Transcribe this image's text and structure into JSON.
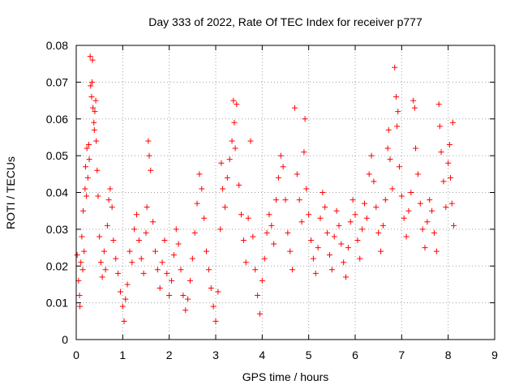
{
  "chart_data": {
    "type": "scatter",
    "title": "Day 333 of 2022, Rate Of TEC Index for receiver p777",
    "xlabel": "GPS time / hours",
    "ylabel": "ROTI / TECUs",
    "xlim": [
      0,
      9
    ],
    "ylim": [
      0,
      0.08
    ],
    "xticks": [
      "0",
      "1",
      "2",
      "3",
      "4",
      "5",
      "6",
      "7",
      "8",
      "9"
    ],
    "yticks": [
      "0",
      "0.01",
      "0.02",
      "0.03",
      "0.04",
      "0.05",
      "0.06",
      "0.07",
      "0.08"
    ],
    "grid": true,
    "marker": "+",
    "color": "#ff0000",
    "series": [
      {
        "name": "ROTI",
        "points": [
          [
            0.02,
            0.023
          ],
          [
            0.05,
            0.016
          ],
          [
            0.07,
            0.012
          ],
          [
            0.08,
            0.009
          ],
          [
            0.1,
            0.021
          ],
          [
            0.12,
            0.028
          ],
          [
            0.14,
            0.019
          ],
          [
            0.15,
            0.035
          ],
          [
            0.17,
            0.024
          ],
          [
            0.19,
            0.041
          ],
          [
            0.2,
            0.047
          ],
          [
            0.22,
            0.039
          ],
          [
            0.23,
            0.052
          ],
          [
            0.25,
            0.044
          ],
          [
            0.27,
            0.053
          ],
          [
            0.28,
            0.049
          ],
          [
            0.3,
            0.077
          ],
          [
            0.31,
            0.069
          ],
          [
            0.33,
            0.066
          ],
          [
            0.34,
            0.07
          ],
          [
            0.35,
            0.076
          ],
          [
            0.36,
            0.063
          ],
          [
            0.38,
            0.059
          ],
          [
            0.39,
            0.057
          ],
          [
            0.4,
            0.062
          ],
          [
            0.42,
            0.065
          ],
          [
            0.43,
            0.054
          ],
          [
            0.45,
            0.046
          ],
          [
            0.47,
            0.039
          ],
          [
            0.5,
            0.028
          ],
          [
            0.53,
            0.021
          ],
          [
            0.56,
            0.017
          ],
          [
            0.6,
            0.024
          ],
          [
            0.63,
            0.019
          ],
          [
            0.67,
            0.031
          ],
          [
            0.7,
            0.038
          ],
          [
            0.73,
            0.041
          ],
          [
            0.77,
            0.036
          ],
          [
            0.8,
            0.027
          ],
          [
            0.85,
            0.022
          ],
          [
            0.9,
            0.018
          ],
          [
            0.95,
            0.013
          ],
          [
            1.0,
            0.009
          ],
          [
            1.03,
            0.005
          ],
          [
            1.06,
            0.011
          ],
          [
            1.1,
            0.015
          ],
          [
            1.15,
            0.024
          ],
          [
            1.2,
            0.021
          ],
          [
            1.25,
            0.03
          ],
          [
            1.3,
            0.034
          ],
          [
            1.35,
            0.027
          ],
          [
            1.4,
            0.022
          ],
          [
            1.45,
            0.018
          ],
          [
            1.5,
            0.029
          ],
          [
            1.52,
            0.036
          ],
          [
            1.55,
            0.054
          ],
          [
            1.57,
            0.05
          ],
          [
            1.6,
            0.046
          ],
          [
            1.65,
            0.032
          ],
          [
            1.7,
            0.024
          ],
          [
            1.75,
            0.019
          ],
          [
            1.8,
            0.014
          ],
          [
            1.85,
            0.021
          ],
          [
            1.9,
            0.027
          ],
          [
            1.95,
            0.018
          ],
          [
            2.0,
            0.012
          ],
          [
            2.05,
            0.016
          ],
          [
            2.1,
            0.023
          ],
          [
            2.15,
            0.03
          ],
          [
            2.2,
            0.026
          ],
          [
            2.25,
            0.019
          ],
          [
            2.3,
            0.012
          ],
          [
            2.35,
            0.008
          ],
          [
            2.4,
            0.011
          ],
          [
            2.45,
            0.016
          ],
          [
            2.5,
            0.022
          ],
          [
            2.55,
            0.029
          ],
          [
            2.6,
            0.037
          ],
          [
            2.65,
            0.045
          ],
          [
            2.7,
            0.041
          ],
          [
            2.75,
            0.033
          ],
          [
            2.8,
            0.024
          ],
          [
            2.85,
            0.019
          ],
          [
            2.9,
            0.014
          ],
          [
            2.95,
            0.009
          ],
          [
            3.0,
            0.005
          ],
          [
            3.05,
            0.013
          ],
          [
            3.1,
            0.03
          ],
          [
            3.12,
            0.048
          ],
          [
            3.15,
            0.041
          ],
          [
            3.2,
            0.036
          ],
          [
            3.25,
            0.044
          ],
          [
            3.3,
            0.049
          ],
          [
            3.35,
            0.054
          ],
          [
            3.38,
            0.065
          ],
          [
            3.4,
            0.059
          ],
          [
            3.42,
            0.052
          ],
          [
            3.45,
            0.064
          ],
          [
            3.5,
            0.042
          ],
          [
            3.55,
            0.034
          ],
          [
            3.6,
            0.027
          ],
          [
            3.65,
            0.021
          ],
          [
            3.7,
            0.033
          ],
          [
            3.75,
            0.054
          ],
          [
            3.8,
            0.028
          ],
          [
            3.85,
            0.019
          ],
          [
            3.9,
            0.012
          ],
          [
            3.95,
            0.007
          ],
          [
            4.0,
            0.016
          ],
          [
            4.05,
            0.022
          ],
          [
            4.1,
            0.029
          ],
          [
            4.15,
            0.034
          ],
          [
            4.2,
            0.031
          ],
          [
            4.25,
            0.026
          ],
          [
            4.3,
            0.038
          ],
          [
            4.35,
            0.044
          ],
          [
            4.4,
            0.05
          ],
          [
            4.45,
            0.047
          ],
          [
            4.5,
            0.038
          ],
          [
            4.55,
            0.029
          ],
          [
            4.6,
            0.024
          ],
          [
            4.65,
            0.019
          ],
          [
            4.7,
            0.063
          ],
          [
            4.75,
            0.045
          ],
          [
            4.8,
            0.038
          ],
          [
            4.85,
            0.032
          ],
          [
            4.9,
            0.051
          ],
          [
            4.92,
            0.06
          ],
          [
            4.95,
            0.041
          ],
          [
            5.0,
            0.034
          ],
          [
            5.05,
            0.027
          ],
          [
            5.1,
            0.022
          ],
          [
            5.15,
            0.018
          ],
          [
            5.2,
            0.025
          ],
          [
            5.25,
            0.033
          ],
          [
            5.3,
            0.04
          ],
          [
            5.35,
            0.036
          ],
          [
            5.4,
            0.029
          ],
          [
            5.45,
            0.023
          ],
          [
            5.5,
            0.019
          ],
          [
            5.55,
            0.028
          ],
          [
            5.6,
            0.035
          ],
          [
            5.65,
            0.031
          ],
          [
            5.7,
            0.026
          ],
          [
            5.75,
            0.021
          ],
          [
            5.8,
            0.017
          ],
          [
            5.85,
            0.025
          ],
          [
            5.9,
            0.032
          ],
          [
            5.95,
            0.038
          ],
          [
            6.0,
            0.034
          ],
          [
            6.05,
            0.027
          ],
          [
            6.1,
            0.022
          ],
          [
            6.15,
            0.03
          ],
          [
            6.2,
            0.037
          ],
          [
            6.25,
            0.033
          ],
          [
            6.3,
            0.045
          ],
          [
            6.35,
            0.05
          ],
          [
            6.4,
            0.043
          ],
          [
            6.45,
            0.036
          ],
          [
            6.5,
            0.029
          ],
          [
            6.55,
            0.024
          ],
          [
            6.6,
            0.031
          ],
          [
            6.65,
            0.038
          ],
          [
            6.7,
            0.052
          ],
          [
            6.72,
            0.057
          ],
          [
            6.75,
            0.049
          ],
          [
            6.8,
            0.041
          ],
          [
            6.85,
            0.074
          ],
          [
            6.88,
            0.066
          ],
          [
            6.9,
            0.058
          ],
          [
            6.92,
            0.062
          ],
          [
            6.95,
            0.047
          ],
          [
            7.0,
            0.039
          ],
          [
            7.05,
            0.033
          ],
          [
            7.1,
            0.028
          ],
          [
            7.15,
            0.035
          ],
          [
            7.2,
            0.04
          ],
          [
            7.25,
            0.065
          ],
          [
            7.28,
            0.063
          ],
          [
            7.3,
            0.052
          ],
          [
            7.35,
            0.045
          ],
          [
            7.4,
            0.037
          ],
          [
            7.45,
            0.03
          ],
          [
            7.5,
            0.025
          ],
          [
            7.55,
            0.032
          ],
          [
            7.6,
            0.038
          ],
          [
            7.65,
            0.035
          ],
          [
            7.7,
            0.029
          ],
          [
            7.75,
            0.024
          ],
          [
            7.8,
            0.064
          ],
          [
            7.82,
            0.058
          ],
          [
            7.85,
            0.051
          ],
          [
            7.9,
            0.043
          ],
          [
            7.95,
            0.036
          ],
          [
            8.0,
            0.048
          ],
          [
            8.03,
            0.053
          ],
          [
            8.05,
            0.044
          ],
          [
            8.08,
            0.037
          ],
          [
            8.1,
            0.059
          ],
          [
            8.12,
            0.031
          ]
        ]
      }
    ]
  }
}
